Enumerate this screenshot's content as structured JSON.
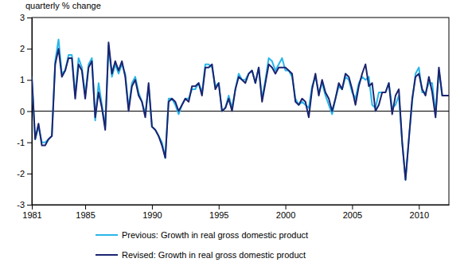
{
  "chart_data": {
    "type": "line",
    "y_label": "quarterly % change",
    "categories": [
      "1981",
      null,
      null,
      null,
      null,
      null,
      null,
      null,
      null,
      null,
      null,
      null,
      null,
      null,
      null,
      null,
      "1985",
      null,
      null,
      null,
      null,
      null,
      null,
      null,
      null,
      null,
      null,
      null,
      null,
      null,
      null,
      null,
      null,
      null,
      null,
      null,
      "1990",
      null,
      null,
      null,
      null,
      null,
      null,
      null,
      null,
      null,
      null,
      null,
      null,
      null,
      null,
      null,
      null,
      null,
      null,
      null,
      "1995",
      null,
      null,
      null,
      null,
      null,
      null,
      null,
      null,
      null,
      null,
      null,
      null,
      null,
      null,
      null,
      null,
      null,
      null,
      null,
      "2000",
      null,
      null,
      null,
      null,
      null,
      null,
      null,
      null,
      null,
      null,
      null,
      null,
      null,
      null,
      null,
      null,
      null,
      null,
      null,
      "2005",
      null,
      null,
      null,
      null,
      null,
      null,
      null,
      null,
      null,
      null,
      null,
      null,
      null,
      null,
      null,
      null,
      null,
      null,
      null,
      "2010",
      null,
      null,
      null,
      null,
      null,
      null,
      null,
      null,
      null
    ],
    "series": [
      {
        "name": "Previous: Growth in real gross domestic product",
        "color": "#29b6ea",
        "values": [
          1.0,
          -0.9,
          -0.5,
          -1.0,
          -1.0,
          -0.9,
          -0.8,
          1.6,
          2.3,
          1.2,
          1.3,
          1.8,
          1.8,
          0.5,
          1.7,
          1.4,
          0.5,
          1.5,
          1.7,
          -0.3,
          0.9,
          0.2,
          -0.5,
          2.1,
          1.1,
          1.5,
          1.2,
          1.5,
          1.2,
          0.1,
          0.9,
          1.1,
          0.6,
          0.3,
          -0.1,
          0.8,
          -0.5,
          -0.6,
          -0.8,
          -1.0,
          -1.5,
          0.4,
          0.4,
          0.2,
          -0.1,
          0.2,
          0.4,
          0.4,
          0.7,
          0.7,
          0.9,
          0.6,
          1.5,
          1.5,
          1.4,
          0.8,
          0.9,
          0.0,
          0.1,
          0.5,
          0.1,
          0.7,
          1.2,
          1.0,
          1.0,
          1.2,
          1.3,
          0.9,
          1.4,
          0.4,
          1.0,
          1.7,
          1.6,
          1.3,
          1.5,
          1.7,
          1.3,
          1.3,
          1.1,
          0.4,
          0.2,
          0.3,
          0.2,
          0.1,
          0.8,
          1.1,
          0.6,
          0.9,
          0.5,
          0.2,
          -0.1,
          0.4,
          0.8,
          0.7,
          1.1,
          1.0,
          0.6,
          0.4,
          0.9,
          1.1,
          1.0,
          1.1,
          0.2,
          0.1,
          0.6,
          0.6,
          0.6,
          0.9,
          0.1,
          0.2,
          0.5,
          -1.0,
          -2.2,
          -0.9,
          0.3,
          1.2,
          1.4,
          0.6,
          0.6,
          0.9,
          0.9,
          -0.1,
          1.3,
          0.5,
          0.5,
          0.5
        ]
      },
      {
        "name": "Revised: Growth in real gross domestic product",
        "color": "#1b2470",
        "values": [
          1.1,
          -0.9,
          -0.4,
          -1.1,
          -1.1,
          -0.9,
          -0.8,
          1.5,
          2.0,
          1.1,
          1.3,
          1.7,
          1.7,
          0.4,
          1.5,
          1.3,
          0.4,
          1.4,
          1.6,
          -0.2,
          0.6,
          0.1,
          -0.6,
          2.2,
          1.2,
          1.6,
          1.3,
          1.6,
          1.1,
          0.0,
          0.8,
          1.0,
          0.5,
          0.3,
          -0.2,
          0.9,
          -0.5,
          -0.6,
          -0.8,
          -1.1,
          -1.5,
          0.3,
          0.4,
          0.3,
          0.0,
          0.2,
          0.4,
          0.3,
          0.8,
          0.8,
          0.9,
          0.5,
          1.4,
          1.4,
          1.5,
          0.7,
          0.9,
          0.0,
          0.1,
          0.4,
          0.0,
          0.7,
          1.1,
          1.0,
          0.9,
          1.2,
          1.3,
          0.9,
          1.4,
          0.3,
          0.9,
          1.5,
          1.4,
          1.2,
          1.4,
          1.4,
          1.4,
          1.3,
          1.2,
          0.3,
          0.2,
          0.4,
          0.3,
          -0.2,
          0.7,
          1.2,
          0.5,
          1.0,
          0.6,
          0.4,
          0.0,
          0.4,
          0.9,
          0.7,
          1.2,
          1.1,
          0.7,
          0.2,
          0.8,
          1.2,
          1.5,
          0.8,
          0.9,
          0.0,
          0.2,
          0.6,
          0.6,
          0.9,
          -0.1,
          0.5,
          0.7,
          -1.0,
          -2.2,
          -0.9,
          0.4,
          1.1,
          1.2,
          0.7,
          0.5,
          1.1,
          0.6,
          -0.2,
          1.4,
          0.5,
          0.5,
          0.5
        ]
      }
    ],
    "ylim": [
      -3,
      3
    ],
    "yticks": [
      -3,
      -2,
      -1,
      0,
      1,
      2,
      3
    ],
    "grid": false,
    "legend": "bottom"
  }
}
